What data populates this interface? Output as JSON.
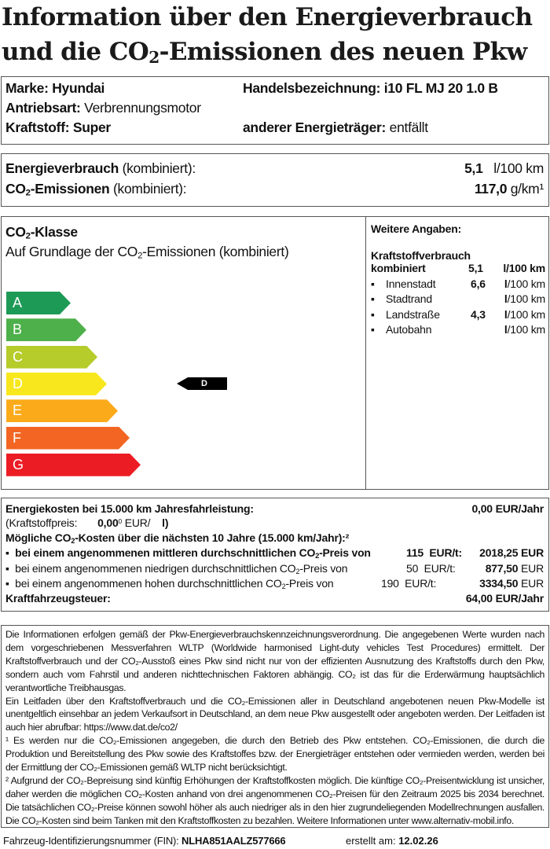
{
  "title": {
    "line1": "Information über den Energieverbrauch",
    "line2a": "und die CO",
    "line2b": "-Emissionen des neuen Pkw"
  },
  "vehicle": {
    "marke_label": "Marke:",
    "marke": "Hyundai",
    "handel_label": "Handelsbezeichnung:",
    "handel": "i10 FL MJ 20 1.0 B",
    "antrieb_label": "Antriebsart:",
    "antrieb": "Verbrennungsmotor",
    "kraftstoff_label": "Kraftstoff:",
    "kraftstoff": "Super",
    "anderer_label": "anderer Energieträger:",
    "anderer": "entfällt"
  },
  "consumption": {
    "energie_label": "Energieverbrauch",
    "kombiniert": "(kombiniert):",
    "energie_value": "5,1",
    "energie_unit": "l/100 km",
    "co2_label": "-Emissionen",
    "co2_value": "117,0",
    "co2_unit": "g/km¹"
  },
  "co2_class": {
    "heading": "-Klasse",
    "subheading_a": "Auf Grundlage der CO",
    "subheading_b": "-Emissionen (kombiniert)",
    "classes": [
      "A",
      "B",
      "C",
      "D",
      "E",
      "F",
      "G"
    ],
    "colors": [
      "#1e9a57",
      "#4db04a",
      "#b5cc2a",
      "#f8e71c",
      "#fbaa1a",
      "#f26522",
      "#ec1c24"
    ],
    "current": "D"
  },
  "weitere": {
    "heading": "Weitere Angaben:",
    "kv_label": "Kraftstoffverbrauch",
    "kombiniert_label": "kombiniert",
    "kombiniert_value": "5,1",
    "kombiniert_unit": "l/100 km",
    "rows": [
      {
        "label": "Innenstadt",
        "value": "6,6",
        "unit": "/100 km"
      },
      {
        "label": "Stadtrand",
        "value": "",
        "unit": "/100 km"
      },
      {
        "label": "Landstraße",
        "value": "4,3",
        "unit": "/100 km"
      },
      {
        "label": "Autobahn",
        "value": "",
        "unit": "/100 km"
      }
    ]
  },
  "costs": {
    "energiekosten_label": "Energiekosten bei 15.000 km Jahresfahrleistung:",
    "energiekosten_value": "0,00 EUR/Jahr",
    "kraftstoffpreis_label": "(Kraftstoffpreis:",
    "kraftstoffpreis_value": "0,00",
    "kraftstoffpreis_sup": "0",
    "kraftstoffpreis_unit": "EUR/",
    "kraftstoffpreis_l": "l)",
    "co2kosten_a": "Mögliche CO",
    "co2kosten_b": "-Kosten über die nächsten 10 Jahre (15.000 km/Jahr):²",
    "scenarios": [
      {
        "text_a": "bei einem angenommenen mittleren durchschnittlichen CO",
        "text_b": "-Preis von",
        "price": "115",
        "unit": "EUR/t:",
        "value": "2018,25",
        "cur": "EUR"
      },
      {
        "text_a": "bei einem angenommenen niedrigen durchschnittlichen CO",
        "text_b": "-Preis von",
        "price": "50",
        "unit": "EUR/t:",
        "value": "877,50",
        "cur": "EUR"
      },
      {
        "text_a": "bei einem angenommenen hohen durchschnittlichen CO",
        "text_b": "-Preis von",
        "price": "190",
        "unit": "EUR/t:",
        "value": "3334,50",
        "cur": "EUR"
      }
    ],
    "steuer_label": "Kraftfahrzeugsteuer:",
    "steuer_value": "64,00 EUR/Jahr"
  },
  "notes": {
    "p1": "Die Informationen erfolgen gemäß der Pkw-Energieverbrauchskennzeichnungsverordnung. Die angegebenen Werte wurden nach dem vorgeschriebenen Messverfahren WLTP (Worldwide harmonised Light-duty vehicles Test Procedures) ermittelt. Der Kraftstoffverbrauch und der CO₂-Ausstoß eines Pkw sind nicht nur von der effizienten Ausnutzung des Kraftstoffs durch den Pkw, sondern auch vom Fahrstil und anderen nichttechnischen Faktoren abhängig. CO₂ ist das für die Erderwärmung hauptsächlich verantwortliche Treibhausgas.",
    "p2": "Ein Leitfaden über den Kraftstoffverbrauch und die CO₂-Emissionen aller in Deutschland angebotenen neuen Pkw-Modelle ist unentgeltlich einsehbar an jedem Verkaufsort in Deutschland, an dem neue Pkw ausgestellt oder angeboten werden. Der Leitfaden ist auch hier abrufbar:   https://www.dat.de/co2/",
    "p3": "¹ Es werden nur die CO₂-Emissionen angegeben, die durch den Betrieb des Pkw entstehen. CO₂-Emissionen, die durch die Produktion und Bereitstellung des Pkw sowie des Kraftstoffes bzw. der Energieträger entstehen oder vermieden werden, werden bei der Ermittlung der CO₂-Emissionen gemäß WLTP nicht berücksichtigt.",
    "p4": "² Aufgrund der CO₂-Bepreisung sind künftig Erhöhungen der Kraftstoffkosten möglich. Die künftige CO₂-Preisentwicklung ist unsicher, daher werden die möglichen CO₂-Kosten anhand von drei angenommenen CO₂-Preisen für den Zeitraum  2025  bis  2034   berechnet. Die tatsächlichen CO₂-Preise können sowohl höher als auch niedriger als in den hier zugrundeliegenden Modellrechnungen ausfallen. Die CO₂-Kosten sind beim Tanken mit den Kraftstoffkosten zu bezahlen. Weitere Informationen unter www.alternativ-mobil.info."
  },
  "footer": {
    "fin_label": "Fahrzeug-Identifizierungsnummer (FIN):",
    "fin": "NLHA851AALZ577666",
    "erstellt_label": "erstellt am:",
    "erstellt": "12.02.26"
  }
}
